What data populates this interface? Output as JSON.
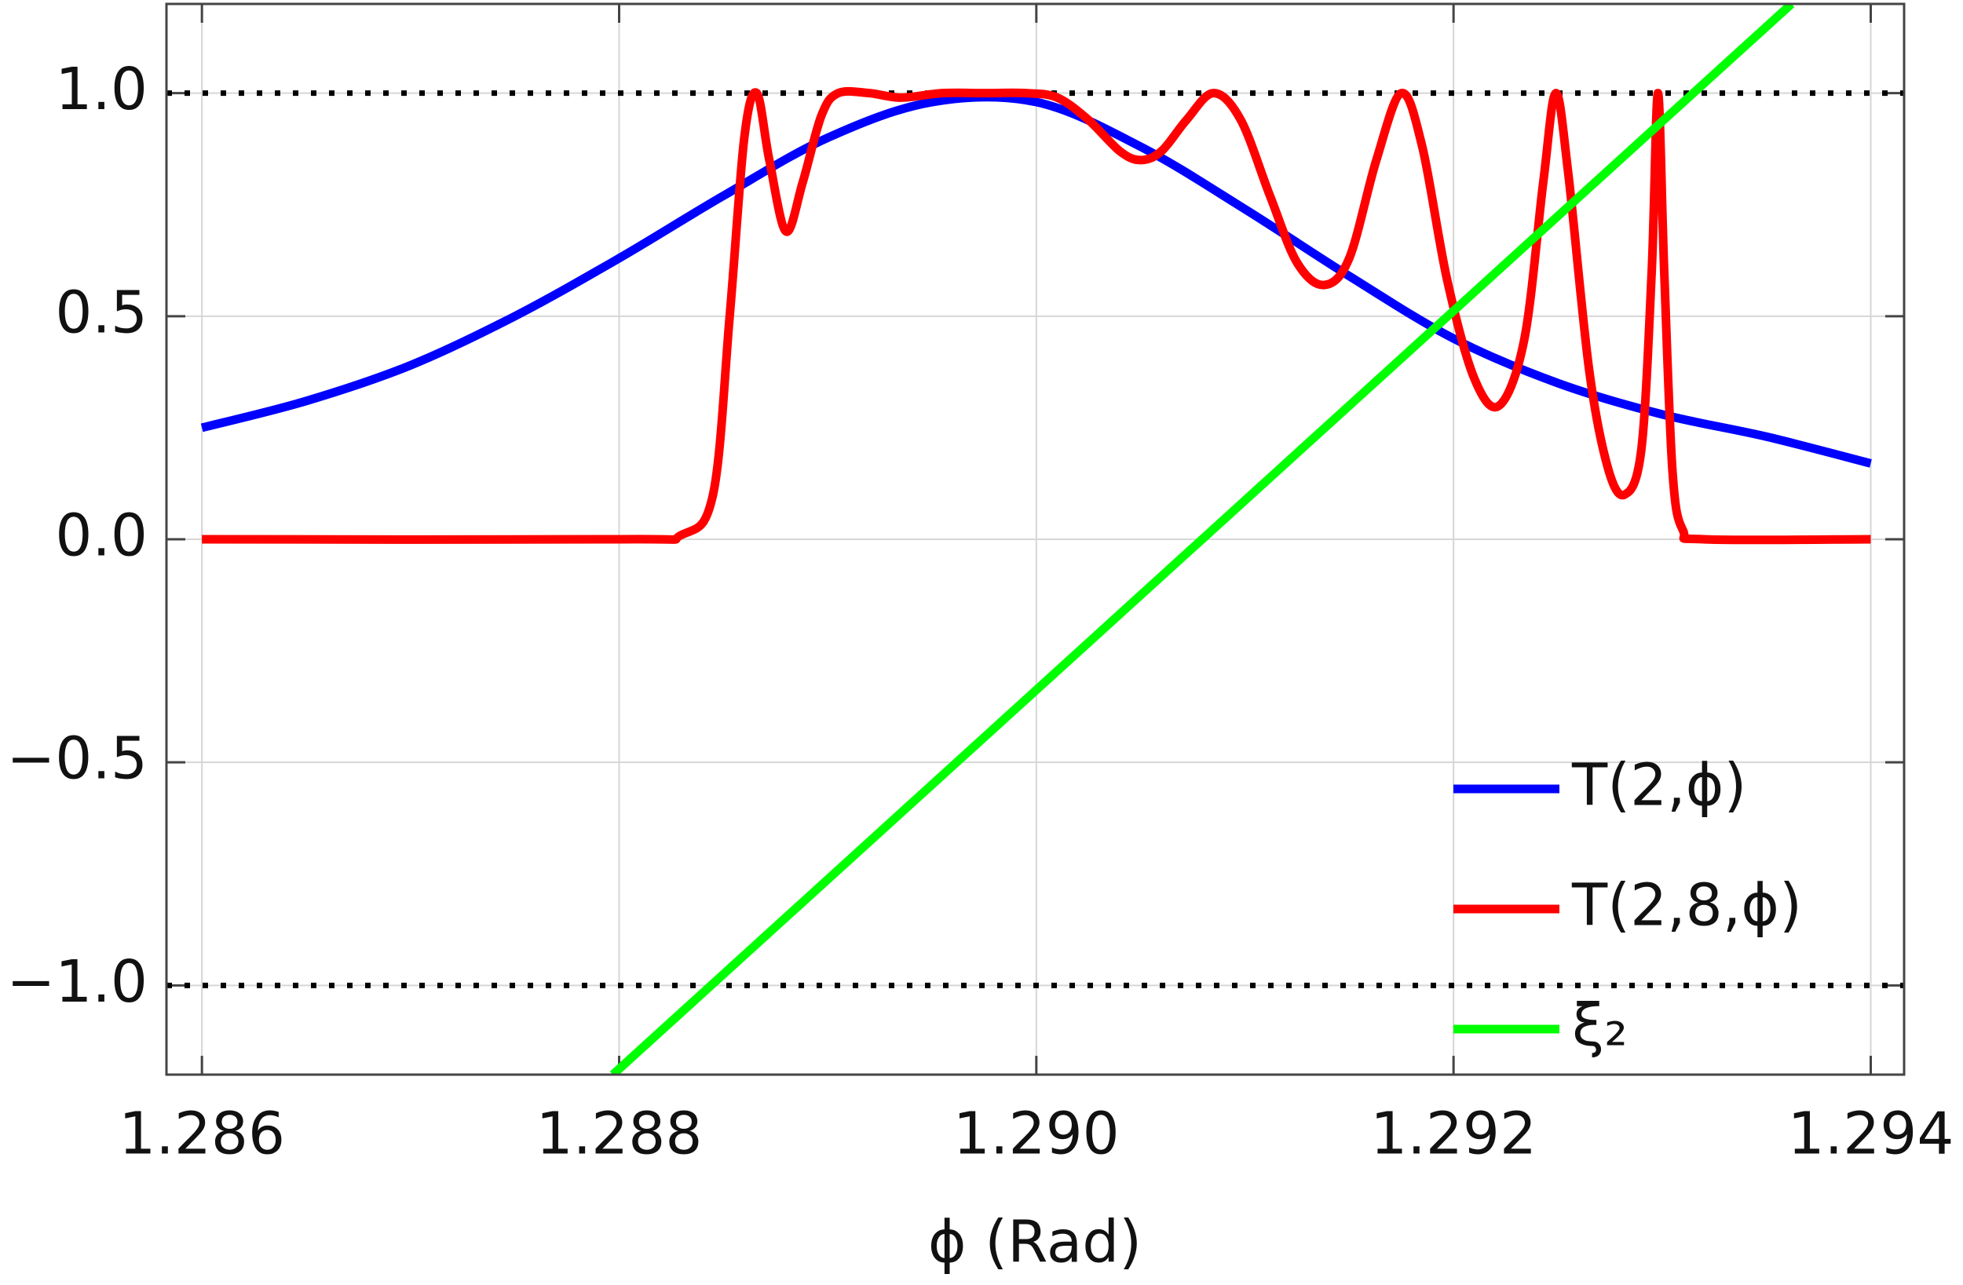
{
  "chart_data": {
    "type": "line",
    "x_label": "ϕ (Rad)",
    "xlim": [
      1.28583,
      1.29416
    ],
    "ylim": [
      -1.2,
      1.2
    ],
    "xticks": [
      1.286,
      1.288,
      {
        "value": 1.29,
        "label": "1.290"
      },
      1.292,
      1.294
    ],
    "yticks": [
      {
        "value": -1,
        "label": "−1.0"
      },
      {
        "value": -0.5,
        "label": "−0.5"
      },
      {
        "value": 0,
        "label": "0.0"
      },
      0.5,
      {
        "value": 1,
        "label": "1.0"
      }
    ],
    "grid": true,
    "reference_lines": [
      -1,
      1
    ],
    "legend": "lower right",
    "series": [
      {
        "name": "T(2,ϕ)",
        "color": "#0000ff",
        "x": [
          1.286,
          1.2865,
          1.287,
          1.2875,
          1.288,
          1.2885,
          1.289,
          1.2895,
          1.29,
          1.2905,
          1.291,
          1.2915,
          1.292,
          1.2925,
          1.293,
          1.2935,
          1.294
        ],
        "values": [
          0.25,
          0.31,
          0.39,
          0.5,
          0.63,
          0.77,
          0.9,
          0.98,
          0.98,
          0.88,
          0.74,
          0.59,
          0.45,
          0.35,
          0.28,
          0.23,
          0.17
        ]
      },
      {
        "name": "T(2,8,ϕ)",
        "color": "#ff0000",
        "x": [
          1.286,
          1.288,
          1.2883,
          1.28845,
          1.28853,
          1.2886,
          1.28866,
          1.28872,
          1.2888,
          1.28888,
          1.28897,
          1.28905,
          1.2892,
          1.28935,
          1.28955,
          1.28975,
          1.28995,
          1.2901,
          1.29025,
          1.2904,
          1.2905,
          1.2906,
          1.29072,
          1.29085,
          1.29098,
          1.29112,
          1.29125,
          1.29138,
          1.2915,
          1.29163,
          1.29175,
          1.29185,
          1.29197,
          1.2921,
          1.29222,
          1.29234,
          1.29243,
          1.29249,
          1.29255,
          1.29265,
          1.29274,
          1.29282,
          1.2929,
          1.29295,
          1.29298,
          1.29301,
          1.29305,
          1.2931,
          1.2932,
          1.294
        ],
        "values": [
          0,
          0,
          0.01,
          0.1,
          0.5,
          0.9,
          1,
          0.85,
          0.69,
          0.8,
          0.95,
          1,
          1,
          0.99,
          1,
          1,
          1,
          0.99,
          0.94,
          0.87,
          0.85,
          0.87,
          0.94,
          1,
          0.94,
          0.77,
          0.62,
          0.57,
          0.63,
          0.85,
          1,
          0.88,
          0.58,
          0.36,
          0.3,
          0.45,
          0.8,
          1,
          0.82,
          0.38,
          0.16,
          0.1,
          0.2,
          0.6,
          1,
          0.6,
          0.15,
          0.02,
          0,
          0
        ]
      },
      {
        "name": "ξ₂",
        "color": "#00ff00",
        "x": [
          1.28797,
          1.29362
        ],
        "values": [
          -1.2,
          1.2
        ]
      }
    ]
  }
}
